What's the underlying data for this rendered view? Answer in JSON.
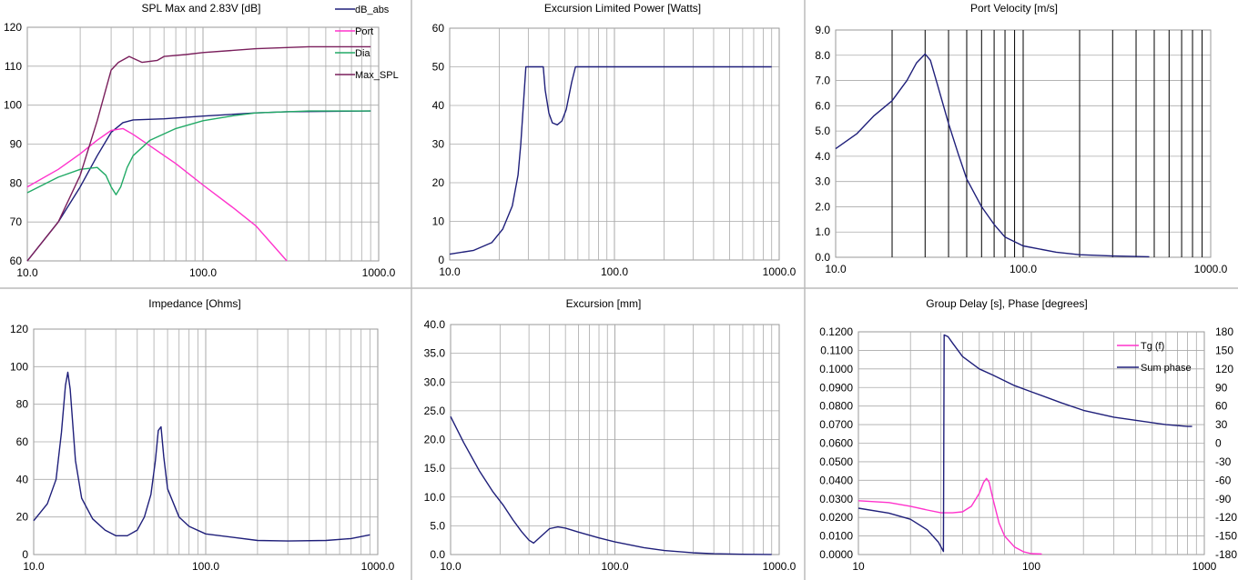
{
  "colors": {
    "dB_abs": "#1F1F7A",
    "Port": "#FF33CC",
    "Dia": "#22AA66",
    "Max_SPL": "#7A1F5C",
    "navy": "#1F1F7A",
    "magenta": "#FF33CC",
    "grid": "#AAAAAA"
  },
  "chart_data": [
    {
      "id": "spl",
      "type": "line",
      "title": "SPL Max and 2.83V [dB]",
      "x_scale": "log",
      "xlim": [
        10,
        1000
      ],
      "ylim": [
        60,
        120
      ],
      "x_ticks": [
        "10.0",
        "100.0",
        "1000.0"
      ],
      "y_ticks": [
        "60",
        "70",
        "80",
        "90",
        "100",
        "110",
        "120"
      ],
      "legend": [
        "dB_abs",
        "Port",
        "Dia",
        "Max_SPL"
      ],
      "series": [
        {
          "name": "dB_abs",
          "color_key": "dB_abs",
          "points": [
            [
              10,
              58
            ],
            [
              15,
              70
            ],
            [
              20,
              79
            ],
            [
              25,
              87
            ],
            [
              30,
              93
            ],
            [
              35,
              95.5
            ],
            [
              40,
              96.2
            ],
            [
              60,
              96.5
            ],
            [
              100,
              97.2
            ],
            [
              200,
              98
            ],
            [
              300,
              98.3
            ],
            [
              900,
              98.5
            ]
          ]
        },
        {
          "name": "Port",
          "color_key": "Port",
          "points": [
            [
              10,
              79
            ],
            [
              15,
              83.5
            ],
            [
              20,
              87.5
            ],
            [
              25,
              91
            ],
            [
              30,
              93.5
            ],
            [
              35,
              94
            ],
            [
              40,
              92.5
            ],
            [
              50,
              89.5
            ],
            [
              70,
              85
            ],
            [
              100,
              79.5
            ],
            [
              150,
              73.5
            ],
            [
              200,
              69
            ],
            [
              300,
              60
            ]
          ]
        },
        {
          "name": "Dia",
          "color_key": "Dia",
          "points": [
            [
              10,
              77.5
            ],
            [
              15,
              81.5
            ],
            [
              20,
              83.5
            ],
            [
              25,
              84
            ],
            [
              28,
              82
            ],
            [
              30,
              79
            ],
            [
              32,
              77
            ],
            [
              34,
              79
            ],
            [
              37,
              84
            ],
            [
              40,
              87
            ],
            [
              50,
              91
            ],
            [
              70,
              94
            ],
            [
              100,
              96
            ],
            [
              150,
              97.3
            ],
            [
              200,
              98
            ],
            [
              400,
              98.5
            ],
            [
              900,
              98.5
            ]
          ]
        },
        {
          "name": "Max_SPL",
          "color_key": "Max_SPL",
          "points": [
            [
              10,
              57
            ],
            [
              15,
              70
            ],
            [
              20,
              82
            ],
            [
              25,
              96
            ],
            [
              30,
              109
            ],
            [
              33,
              111
            ],
            [
              38,
              112.5
            ],
            [
              45,
              111
            ],
            [
              55,
              111.5
            ],
            [
              60,
              112.5
            ],
            [
              80,
              113
            ],
            [
              100,
              113.5
            ],
            [
              200,
              114.5
            ],
            [
              400,
              115
            ],
            [
              900,
              115
            ]
          ]
        }
      ]
    },
    {
      "id": "power",
      "type": "line",
      "title": "Excursion Limited Power [Watts]",
      "x_scale": "log",
      "xlim": [
        10,
        1000
      ],
      "ylim": [
        0,
        60
      ],
      "x_ticks": [
        "10.0",
        "100.0",
        "1000.0"
      ],
      "y_ticks": [
        "0",
        "10",
        "20",
        "30",
        "40",
        "50",
        "60"
      ],
      "series": [
        {
          "name": "",
          "color_key": "navy",
          "points": [
            [
              10,
              1.5
            ],
            [
              14,
              2.5
            ],
            [
              18,
              4.5
            ],
            [
              21,
              8
            ],
            [
              24,
              14
            ],
            [
              26,
              22
            ],
            [
              27,
              30
            ],
            [
              28,
              40
            ],
            [
              29,
              50
            ],
            [
              35,
              50
            ],
            [
              37,
              50
            ],
            [
              38,
              44
            ],
            [
              40,
              38
            ],
            [
              42,
              35.5
            ],
            [
              45,
              35
            ],
            [
              48,
              36
            ],
            [
              51,
              39
            ],
            [
              55,
              46
            ],
            [
              58,
              50
            ],
            [
              900,
              50
            ]
          ]
        }
      ]
    },
    {
      "id": "port",
      "type": "line",
      "title": "Port Velocity [m/s]",
      "x_scale": "log",
      "xlim": [
        10,
        1000
      ],
      "ylim": [
        0,
        9
      ],
      "x_ticks": [
        "10.0",
        "100.0",
        "1000.0"
      ],
      "y_ticks": [
        "0.0",
        "1.0",
        "2.0",
        "3.0",
        "4.0",
        "5.0",
        "6.0",
        "7.0",
        "8.0",
        "9.0"
      ],
      "series": [
        {
          "name": "",
          "color_key": "navy",
          "points": [
            [
              10,
              4.3
            ],
            [
              13,
              4.9
            ],
            [
              16,
              5.6
            ],
            [
              20,
              6.2
            ],
            [
              24,
              7
            ],
            [
              27,
              7.7
            ],
            [
              30,
              8.05
            ],
            [
              32,
              7.8
            ],
            [
              35,
              6.8
            ],
            [
              40,
              5.3
            ],
            [
              45,
              4.1
            ],
            [
              50,
              3.1
            ],
            [
              60,
              2
            ],
            [
              70,
              1.3
            ],
            [
              80,
              0.8
            ],
            [
              100,
              0.45
            ],
            [
              150,
              0.2
            ],
            [
              200,
              0.1
            ],
            [
              300,
              0.05
            ],
            [
              470,
              0.02
            ]
          ]
        }
      ]
    },
    {
      "id": "impedance",
      "type": "line",
      "title": "Impedance [Ohms]",
      "x_scale": "log",
      "xlim": [
        10,
        1000
      ],
      "ylim": [
        0,
        120
      ],
      "x_ticks": [
        "10.0",
        "100.0",
        "1000.0"
      ],
      "y_ticks": [
        "0",
        "20",
        "40",
        "60",
        "80",
        "100",
        "120"
      ],
      "series": [
        {
          "name": "",
          "color_key": "navy",
          "points": [
            [
              10,
              18
            ],
            [
              12,
              27
            ],
            [
              13.5,
              40
            ],
            [
              14.5,
              65
            ],
            [
              15.3,
              90
            ],
            [
              15.8,
              97
            ],
            [
              16.3,
              88
            ],
            [
              17.5,
              50
            ],
            [
              19,
              30
            ],
            [
              22,
              19
            ],
            [
              26,
              13
            ],
            [
              30,
              10
            ],
            [
              35,
              10
            ],
            [
              40,
              13
            ],
            [
              44,
              20
            ],
            [
              48,
              32
            ],
            [
              51,
              50
            ],
            [
              53,
              66
            ],
            [
              55,
              68
            ],
            [
              57,
              52
            ],
            [
              60,
              35
            ],
            [
              70,
              20
            ],
            [
              80,
              15
            ],
            [
              100,
              11
            ],
            [
              200,
              7.5
            ],
            [
              300,
              7.2
            ],
            [
              500,
              7.5
            ],
            [
              700,
              8.5
            ],
            [
              900,
              10.5
            ]
          ]
        }
      ]
    },
    {
      "id": "excursion",
      "type": "line",
      "title": "Excursion [mm]",
      "x_scale": "log",
      "xlim": [
        10,
        1000
      ],
      "ylim": [
        0,
        40
      ],
      "x_ticks": [
        "10.0",
        "100.0",
        "1000.0"
      ],
      "y_ticks": [
        "0.0",
        "5.0",
        "10.0",
        "15.0",
        "20.0",
        "25.0",
        "30.0",
        "35.0",
        "40.0"
      ],
      "series": [
        {
          "name": "",
          "color_key": "navy",
          "points": [
            [
              10,
              24
            ],
            [
              12,
              19.5
            ],
            [
              15,
              14.5
            ],
            [
              18,
              11
            ],
            [
              21,
              8.5
            ],
            [
              24,
              6
            ],
            [
              27,
              4
            ],
            [
              30,
              2.5
            ],
            [
              32,
              2
            ],
            [
              35,
              3
            ],
            [
              40,
              4.5
            ],
            [
              45,
              4.8
            ],
            [
              50,
              4.6
            ],
            [
              60,
              3.9
            ],
            [
              80,
              2.9
            ],
            [
              100,
              2.2
            ],
            [
              150,
              1.2
            ],
            [
              200,
              0.7
            ],
            [
              300,
              0.3
            ],
            [
              400,
              0.15
            ],
            [
              600,
              0.05
            ],
            [
              900,
              0.02
            ]
          ]
        }
      ]
    },
    {
      "id": "group_delay",
      "type": "line",
      "title": "Group Delay [s], Phase [degrees]",
      "x_scale": "log",
      "xlim": [
        10,
        1000
      ],
      "ylim": [
        0,
        0.12
      ],
      "y2lim": [
        -180,
        180
      ],
      "x_ticks": [
        "10",
        "100",
        "1000"
      ],
      "y_ticks": [
        "0.0000",
        "0.0100",
        "0.0200",
        "0.0300",
        "0.0400",
        "0.0500",
        "0.0600",
        "0.0700",
        "0.0800",
        "0.0900",
        "0.1000",
        "0.1100",
        "0.1200"
      ],
      "y2_ticks": [
        "-180",
        "-150",
        "-120",
        "-90",
        "-60",
        "-30",
        "0",
        "30",
        "60",
        "90",
        "120",
        "150",
        "180"
      ],
      "legend": [
        "Tg (f)",
        "Sum phase"
      ],
      "series": [
        {
          "name": "Tg (f)",
          "color_key": "magenta",
          "axis": "y",
          "points": [
            [
              10,
              0.029
            ],
            [
              15,
              0.028
            ],
            [
              20,
              0.026
            ],
            [
              25,
              0.024
            ],
            [
              30,
              0.0225
            ],
            [
              35,
              0.0225
            ],
            [
              40,
              0.023
            ],
            [
              45,
              0.026
            ],
            [
              50,
              0.033
            ],
            [
              53,
              0.039
            ],
            [
              55,
              0.041
            ],
            [
              57,
              0.039
            ],
            [
              60,
              0.03
            ],
            [
              65,
              0.017
            ],
            [
              70,
              0.01
            ],
            [
              80,
              0.004
            ],
            [
              90,
              0.0015
            ],
            [
              100,
              0.0005
            ],
            [
              115,
              0.0003
            ]
          ]
        },
        {
          "name": "Sum phase",
          "color_key": "navy",
          "axis": "y2",
          "points": [
            [
              10,
              -105
            ],
            [
              15,
              -113
            ],
            [
              20,
              -123
            ],
            [
              25,
              -140
            ],
            [
              29,
              -160
            ],
            [
              31,
              -175
            ],
            [
              31.3,
              175
            ],
            [
              33,
              172
            ],
            [
              35,
              162
            ],
            [
              40,
              140
            ],
            [
              50,
              120
            ],
            [
              60,
              110
            ],
            [
              80,
              93
            ],
            [
              100,
              83
            ],
            [
              150,
              65
            ],
            [
              200,
              53
            ],
            [
              300,
              42
            ],
            [
              400,
              37
            ],
            [
              600,
              30
            ],
            [
              800,
              27
            ],
            [
              850,
              27
            ]
          ]
        }
      ]
    }
  ]
}
